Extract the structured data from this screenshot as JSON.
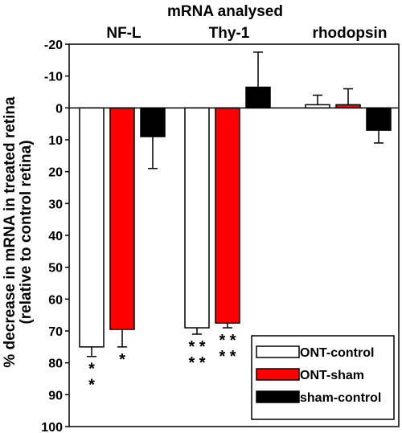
{
  "chart_data": {
    "type": "bar",
    "title": "mRNA analysed",
    "ylabel_line1": "% decrease in mRNA in treated retina",
    "ylabel_line2": "(relative to control retina)",
    "categories": [
      "NF-L",
      "Thy-1",
      "rhodopsin"
    ],
    "ylim": [
      -20,
      100
    ],
    "y_axis_inverted": true,
    "yticks": [
      -20,
      -10,
      0,
      10,
      20,
      30,
      40,
      50,
      60,
      70,
      80,
      90,
      100
    ],
    "series": [
      {
        "name": "ONT-control",
        "color": "#ffffff",
        "values": [
          75,
          69,
          -1
        ],
        "errors": [
          3,
          2,
          3
        ]
      },
      {
        "name": "ONT-sham",
        "color": "#ff0000",
        "values": [
          69.5,
          67.5,
          -1
        ],
        "errors": [
          5.5,
          1.5,
          5
        ]
      },
      {
        "name": "sham-control",
        "color": "#000000",
        "values": [
          9,
          -6.5,
          7
        ],
        "errors": [
          10,
          11,
          4
        ]
      }
    ],
    "significance": [
      {
        "category": 0,
        "series": 0,
        "label": "*\n*"
      },
      {
        "category": 0,
        "series": 1,
        "label": "*"
      },
      {
        "category": 1,
        "series": 0,
        "label": "* *\n* *"
      },
      {
        "category": 1,
        "series": 1,
        "label": "* *\n* *"
      }
    ],
    "legend_position": "bottom-right",
    "grid": false
  }
}
